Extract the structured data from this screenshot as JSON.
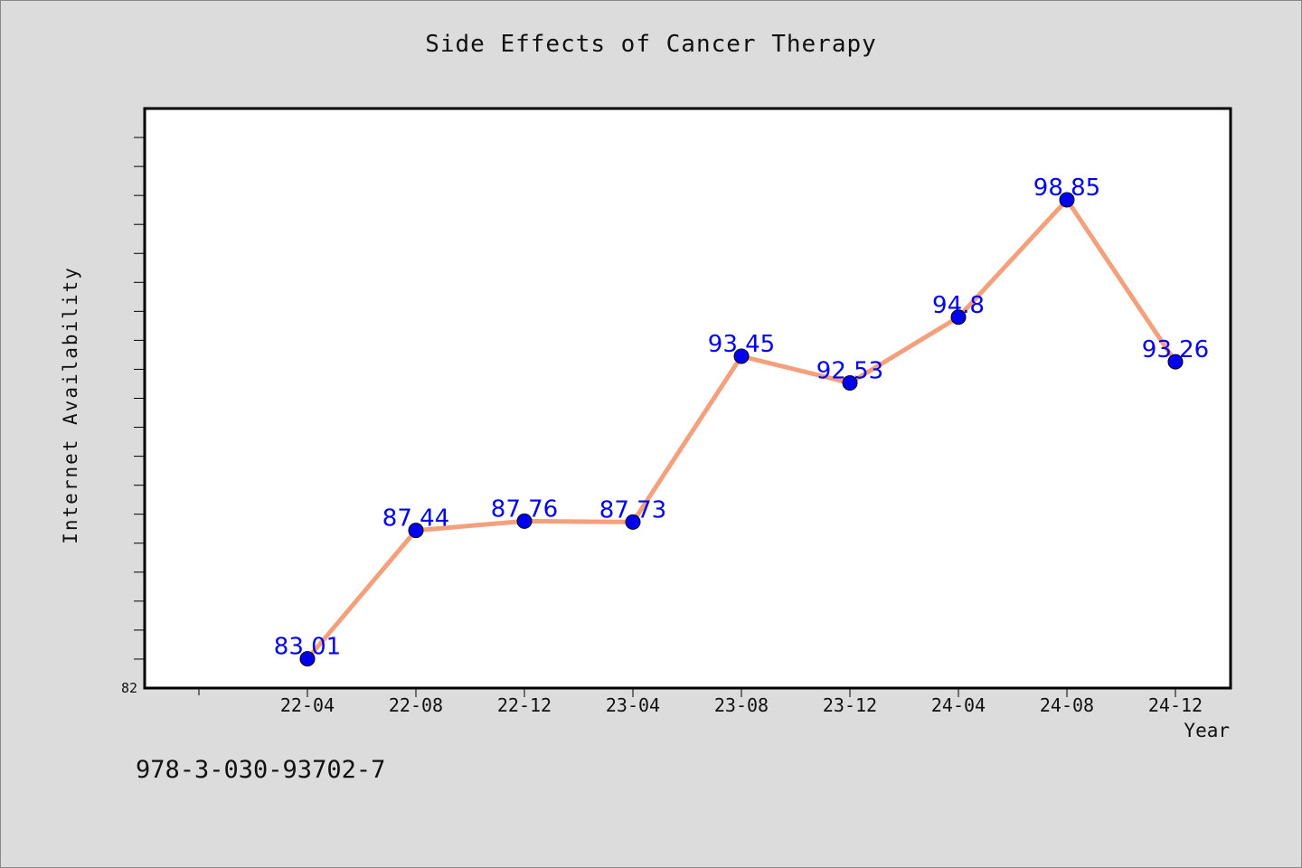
{
  "chart_data": {
    "type": "line",
    "title": "Side Effects of Cancer Therapy",
    "xlabel": "Year",
    "ylabel": "Internet Availability",
    "categories": [
      "22-04",
      "22-08",
      "22-12",
      "23-04",
      "23-08",
      "23-12",
      "24-04",
      "24-08",
      "24-12"
    ],
    "series": [
      {
        "values": [
          83.01,
          87.44,
          87.76,
          87.73,
          93.45,
          92.53,
          94.8,
          98.85,
          93.26
        ],
        "labels": [
          "83.01",
          "87.44",
          "87.76",
          "87.73",
          "93.45",
          "92.53",
          "94.8",
          "98.85",
          "93.26"
        ]
      }
    ],
    "ylim": [
      82,
      102
    ],
    "ytick_labels": [
      "82"
    ],
    "grid": false,
    "colors": {
      "line": "#f4a07c",
      "marker": "#0000ee",
      "label": "#0000ee",
      "background": "#dcdcdc",
      "plot_bg": "#ffffff"
    }
  },
  "footer": {
    "isbn": "978-3-030-93702-7"
  }
}
